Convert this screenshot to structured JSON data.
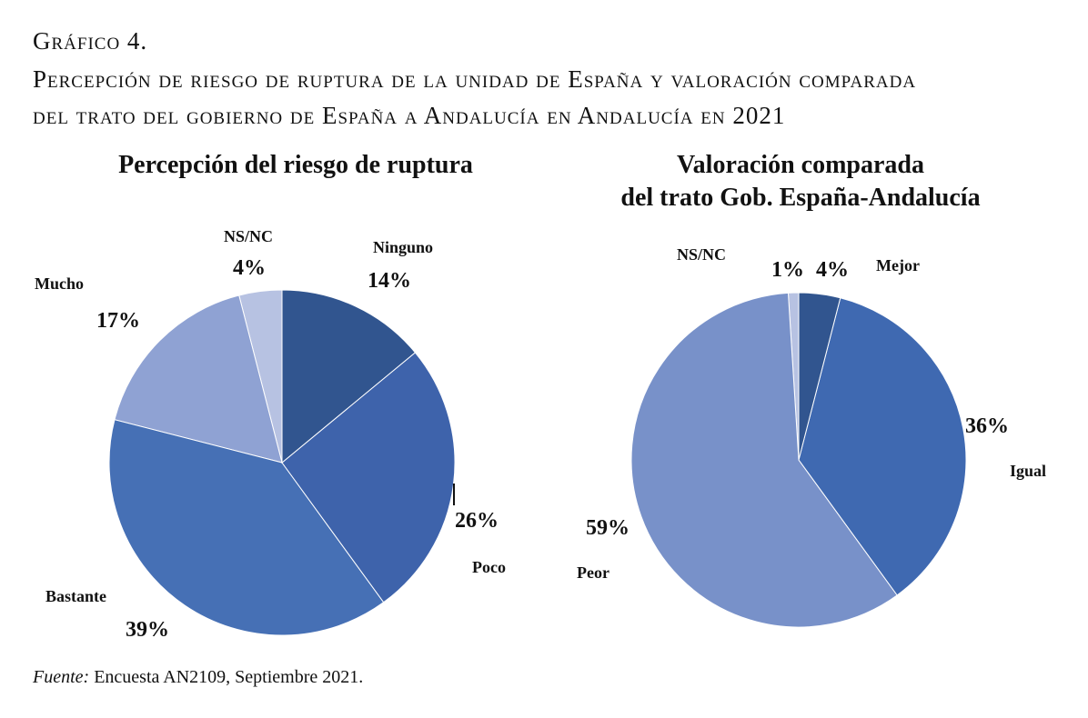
{
  "header": {
    "figure": "Gráfico 4.",
    "title_line1": "Percepción de riesgo de ruptura de la unidad de España y valoración comparada",
    "title_line2": "del trato del gobierno de España a Andalucía en Andalucía en 2021"
  },
  "chart_data": [
    {
      "type": "pie",
      "title": "Percepción del riesgo de ruptura",
      "categories": [
        "Ninguno",
        "Poco",
        "Bastante",
        "Mucho",
        "NS/NC"
      ],
      "values": [
        14,
        26,
        39,
        17,
        4
      ],
      "labels": [
        "14%",
        "26%",
        "39%",
        "17%",
        "4%"
      ],
      "colors": [
        "#31558f",
        "#3e63ab",
        "#4670b5",
        "#8fa2d3",
        "#b7c2e2"
      ]
    },
    {
      "type": "pie",
      "title_line1": "Valoración comparada",
      "title_line2": "del trato Gob. España-Andalucía",
      "categories": [
        "Mejor",
        "Igual",
        "Peor",
        "NS/NC"
      ],
      "values": [
        4,
        36,
        59,
        1
      ],
      "labels": [
        "4%",
        "36%",
        "59%",
        "1%"
      ],
      "colors": [
        "#31558f",
        "#3f69b1",
        "#7891c9",
        "#b7c2e2"
      ]
    }
  ],
  "source": {
    "label": "Fuente:",
    "text": " Encuesta AN2109, Septiembre 2021."
  }
}
